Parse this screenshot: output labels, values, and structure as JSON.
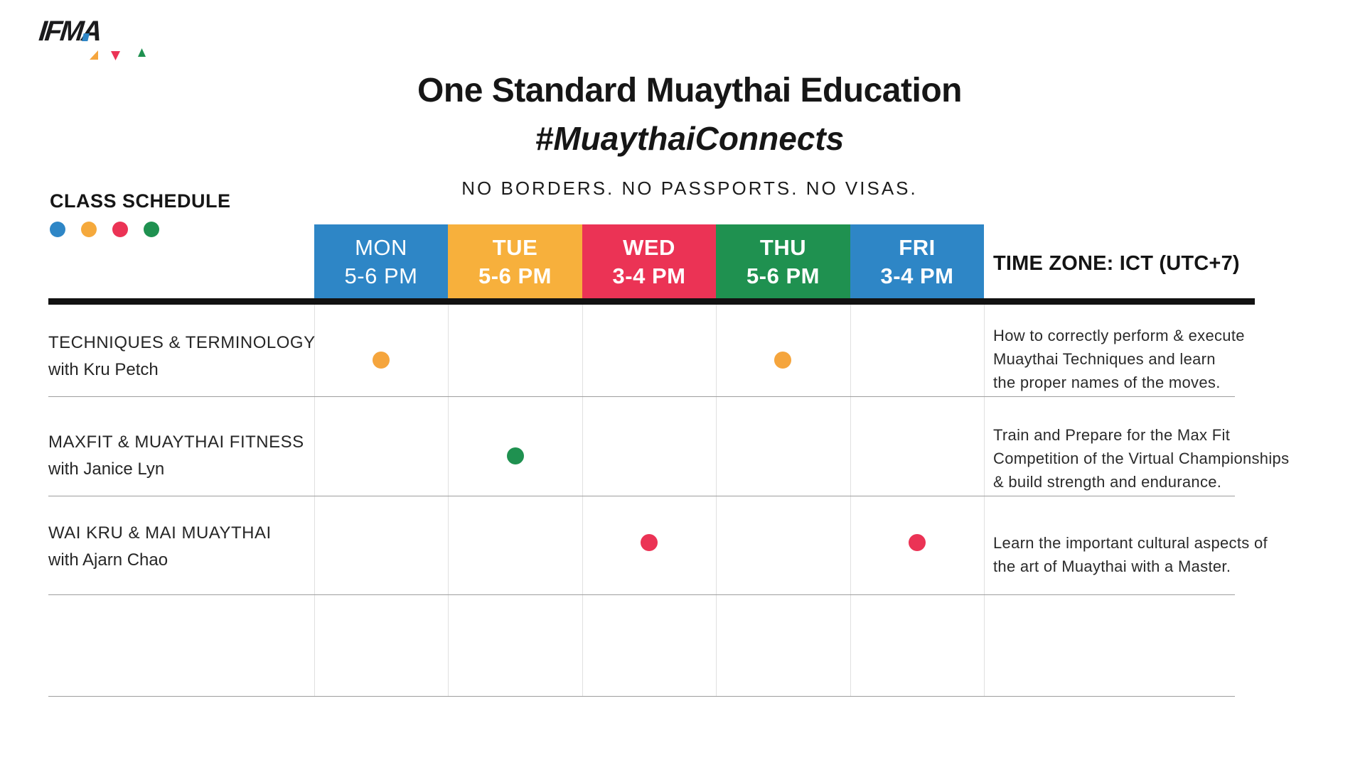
{
  "logo": {
    "text": "IFMA"
  },
  "header": {
    "title": "One Standard Muaythai Education",
    "hashtag": "#MuaythaiConnects",
    "tagline": "NO BORDERS. NO PASSPORTS. NO VISAS."
  },
  "schedule": {
    "label": "CLASS SCHEDULE",
    "legend_colors": [
      "#2E86C6",
      "#F5A93C",
      "#EB3355",
      "#1F9150"
    ],
    "timezone": "TIME ZONE: ICT (UTC+7)",
    "days": [
      {
        "day": "MON",
        "time": "5-6 PM",
        "color": "#2E86C6",
        "bold": false
      },
      {
        "day": "TUE",
        "time": "5-6 PM",
        "color": "#F7B03C",
        "bold": true
      },
      {
        "day": "WED",
        "time": "3-4 PM",
        "color": "#EB3355",
        "bold": true
      },
      {
        "day": "THU",
        "time": "5-6 PM",
        "color": "#1F9150",
        "bold": true
      },
      {
        "day": "FRI",
        "time": "3-4 PM",
        "color": "#2E86C6",
        "bold": true
      }
    ],
    "rows": [
      {
        "title": "TECHNIQUES & TERMINOLOGY",
        "instructor": "with Kru Petch",
        "dots": [
          {
            "day": 0,
            "color": "#F5A53D"
          },
          {
            "day": 3,
            "color": "#F5A53D"
          }
        ],
        "description": [
          "How to correctly perform & execute",
          "Muaythai Techniques and learn",
          "the proper names of the moves."
        ]
      },
      {
        "title": "MAXFIT & MUAYTHAI FITNESS",
        "instructor": "with Janice Lyn",
        "dots": [
          {
            "day": 1,
            "color": "#1F9150"
          }
        ],
        "description": [
          "Train and Prepare for the Max Fit",
          "Competition of the Virtual Championships",
          "& build strength and endurance."
        ]
      },
      {
        "title": "WAI KRU & MAI MUAYTHAI",
        "instructor": "with Ajarn Chao",
        "dots": [
          {
            "day": 2,
            "color": "#EB3355"
          },
          {
            "day": 4,
            "color": "#EB3355"
          }
        ],
        "description": [
          "Learn the important cultural aspects of",
          "the art of Muaythai with a Master."
        ]
      },
      {
        "title": "",
        "instructor": "",
        "dots": [],
        "description": []
      }
    ]
  }
}
